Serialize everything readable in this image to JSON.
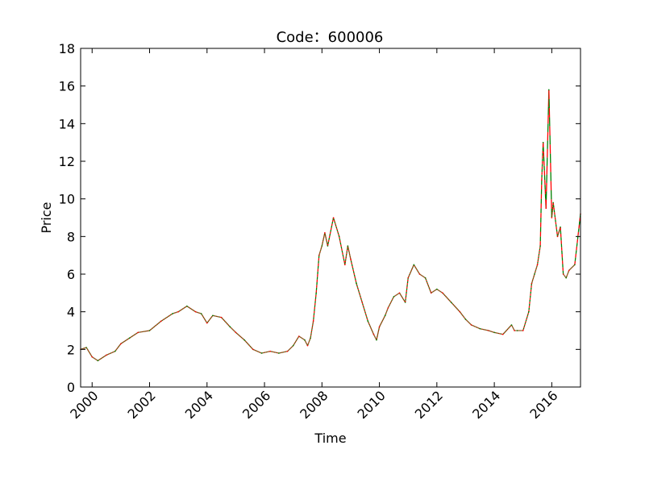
{
  "chart_data": {
    "type": "line",
    "title": "Code：600006",
    "xlabel": "Time",
    "ylabel": "Price",
    "xlim": [
      1999.6,
      2017.0
    ],
    "ylim": [
      0,
      18
    ],
    "x_ticks": [
      2000,
      2002,
      2004,
      2006,
      2008,
      2010,
      2012,
      2014,
      2016
    ],
    "x_tick_labels": [
      "2000",
      "2002",
      "2004",
      "2006",
      "2008",
      "2010",
      "2012",
      "2014",
      "2016"
    ],
    "y_ticks": [
      0,
      2,
      4,
      6,
      8,
      10,
      12,
      14,
      16,
      18
    ],
    "y_tick_labels": [
      "0",
      "2",
      "4",
      "6",
      "8",
      "10",
      "12",
      "14",
      "16",
      "18"
    ],
    "grid": false,
    "legend": "none",
    "colors": {
      "up": "#ff0000",
      "down": "#008000"
    },
    "series": [
      {
        "x": [
          1999.6,
          1999.8,
          2000.0,
          2000.2,
          2000.5,
          2000.8,
          2001.0,
          2001.3,
          2001.6,
          2002.0,
          2002.4,
          2002.8,
          2003.0,
          2003.3,
          2003.6,
          2003.8,
          2004.0,
          2004.2,
          2004.5,
          2004.8,
          2005.0,
          2005.3,
          2005.6,
          2005.9,
          2006.2,
          2006.5,
          2006.8,
          2007.0,
          2007.2,
          2007.4,
          2007.5,
          2007.6,
          2007.7,
          2007.8,
          2007.9,
          2008.0,
          2008.1,
          2008.2,
          2008.4,
          2008.6,
          2008.8,
          2008.9,
          2009.0,
          2009.2,
          2009.4,
          2009.6,
          2009.8,
          2009.9,
          2010.0,
          2010.2,
          2010.3,
          2010.5,
          2010.7,
          2010.9,
          2011.0,
          2011.2,
          2011.4,
          2011.6,
          2011.8,
          2012.0,
          2012.2,
          2012.5,
          2012.8,
          2013.0,
          2013.2,
          2013.5,
          2013.8,
          2014.0,
          2014.3,
          2014.6,
          2014.7,
          2014.8,
          2015.0,
          2015.2,
          2015.3,
          2015.4,
          2015.5,
          2015.6,
          2015.65,
          2015.7,
          2015.8,
          2015.9,
          2016.0,
          2016.05,
          2016.2,
          2016.3,
          2016.4,
          2016.5,
          2016.6,
          2016.8,
          2017.0
        ],
        "values": [
          2.0,
          2.1,
          1.6,
          1.4,
          1.7,
          1.9,
          2.3,
          2.6,
          2.9,
          3.0,
          3.5,
          3.9,
          4.0,
          4.3,
          4.0,
          3.9,
          3.4,
          3.8,
          3.7,
          3.2,
          2.9,
          2.5,
          2.0,
          1.8,
          1.9,
          1.8,
          1.9,
          2.2,
          2.7,
          2.5,
          2.2,
          2.6,
          3.5,
          5.0,
          7.0,
          7.5,
          8.2,
          7.5,
          9.0,
          8.0,
          6.5,
          7.5,
          6.8,
          5.5,
          4.5,
          3.5,
          2.8,
          2.5,
          3.2,
          3.8,
          4.2,
          4.8,
          5.0,
          4.5,
          5.8,
          6.5,
          6.0,
          5.8,
          5.0,
          5.2,
          5.0,
          4.5,
          4.0,
          3.6,
          3.3,
          3.1,
          3.0,
          2.9,
          2.8,
          3.3,
          3.0,
          3.0,
          3.0,
          4.0,
          5.5,
          6.0,
          6.5,
          7.5,
          11.0,
          13.0,
          9.5,
          15.8,
          9.0,
          9.8,
          8.0,
          8.5,
          6.0,
          5.8,
          6.2,
          6.5,
          9.2
        ]
      }
    ]
  }
}
